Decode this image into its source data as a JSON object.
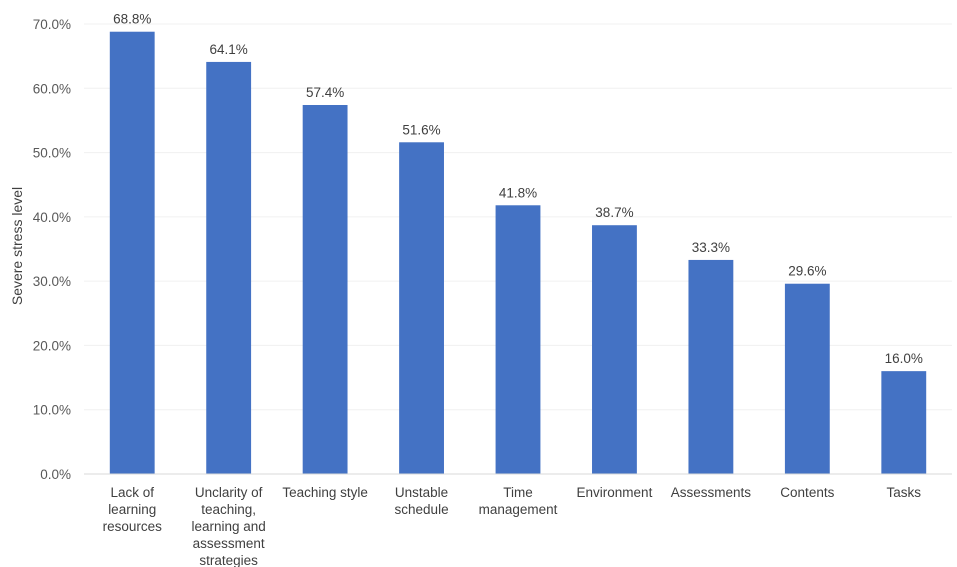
{
  "chart_data": {
    "type": "bar",
    "title": "",
    "xlabel": "",
    "ylabel": "Severe stress level",
    "ylim": [
      0,
      70
    ],
    "yticks": [
      "0.0%",
      "10.0%",
      "20.0%",
      "30.0%",
      "40.0%",
      "50.0%",
      "60.0%",
      "70.0%"
    ],
    "grid": true,
    "bar_color": "#4472C4",
    "categories": [
      "Lack of learning resources",
      "Unclarity of teaching, learning and assessment strategies",
      "Teaching style",
      "Unstable schedule",
      "Time management",
      "Environment",
      "Assessments",
      "Contents",
      "Tasks"
    ],
    "category_label_lines": [
      [
        "Lack of",
        "learning",
        "resources"
      ],
      [
        "Unclarity of",
        "teaching,",
        "learning and",
        "assessment",
        "strategies"
      ],
      [
        "Teaching style"
      ],
      [
        "Unstable",
        "schedule"
      ],
      [
        "Time",
        "management"
      ],
      [
        "Environment"
      ],
      [
        "Assessments"
      ],
      [
        "Contents"
      ],
      [
        "Tasks"
      ]
    ],
    "values": [
      68.8,
      64.1,
      57.4,
      51.6,
      41.8,
      38.7,
      33.3,
      29.6,
      16.0
    ],
    "data_labels": [
      "68.8%",
      "64.1%",
      "57.4%",
      "51.6%",
      "41.8%",
      "38.7%",
      "33.3%",
      "29.6%",
      "16.0%"
    ]
  }
}
